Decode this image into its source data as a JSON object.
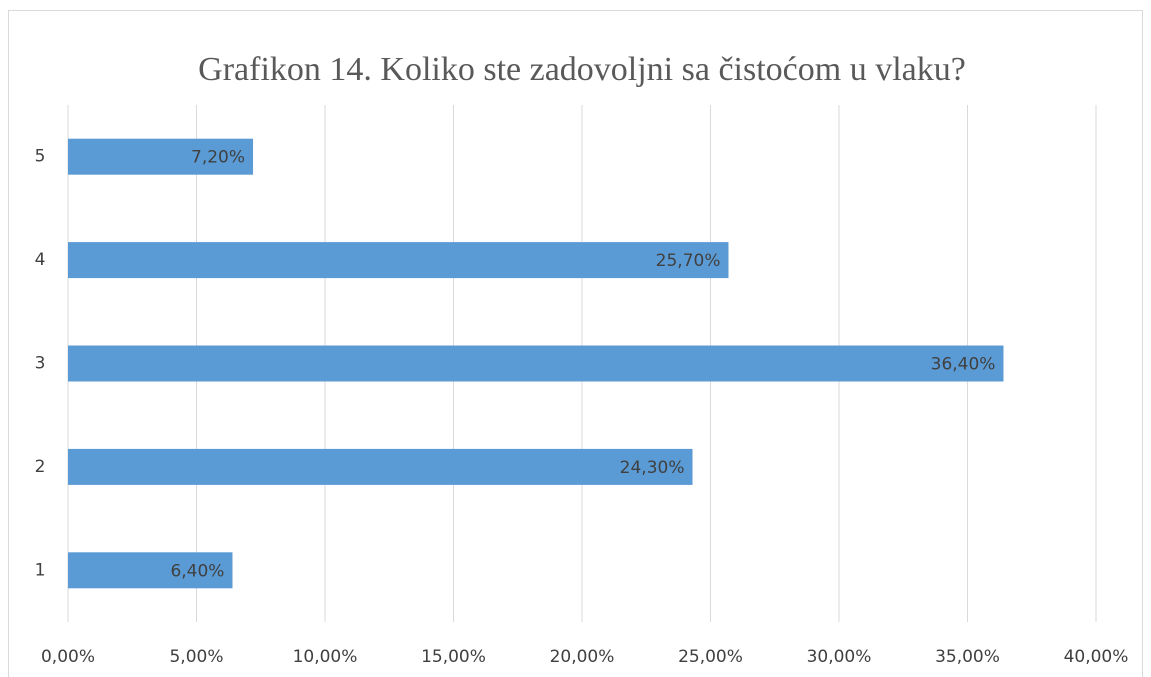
{
  "chart_data": {
    "type": "hbar",
    "title": "Grafikon 14. Koliko ste zadovoljni sa čistoćom u vlaku?",
    "categories": [
      "1",
      "2",
      "3",
      "4",
      "5"
    ],
    "values": [
      6.4,
      24.3,
      36.4,
      25.7,
      7.2
    ],
    "value_labels": [
      "6,40%",
      "24,30%",
      "36,40%",
      "25,70%",
      "7,20%"
    ],
    "color": "#5b9bd5",
    "xlim": [
      0,
      40
    ],
    "xticks": [
      {
        "value": 0,
        "label": "0,00%"
      },
      {
        "value": 5,
        "label": "5,00%"
      },
      {
        "value": 10,
        "label": "10,00%"
      },
      {
        "value": 15,
        "label": "15,00%"
      },
      {
        "value": 20,
        "label": "20,00%"
      },
      {
        "value": 25,
        "label": "25,00%"
      },
      {
        "value": 30,
        "label": "30,00%"
      },
      {
        "value": 35,
        "label": "35,00%"
      },
      {
        "value": 40,
        "label": "40,00%"
      }
    ],
    "grid": true
  }
}
